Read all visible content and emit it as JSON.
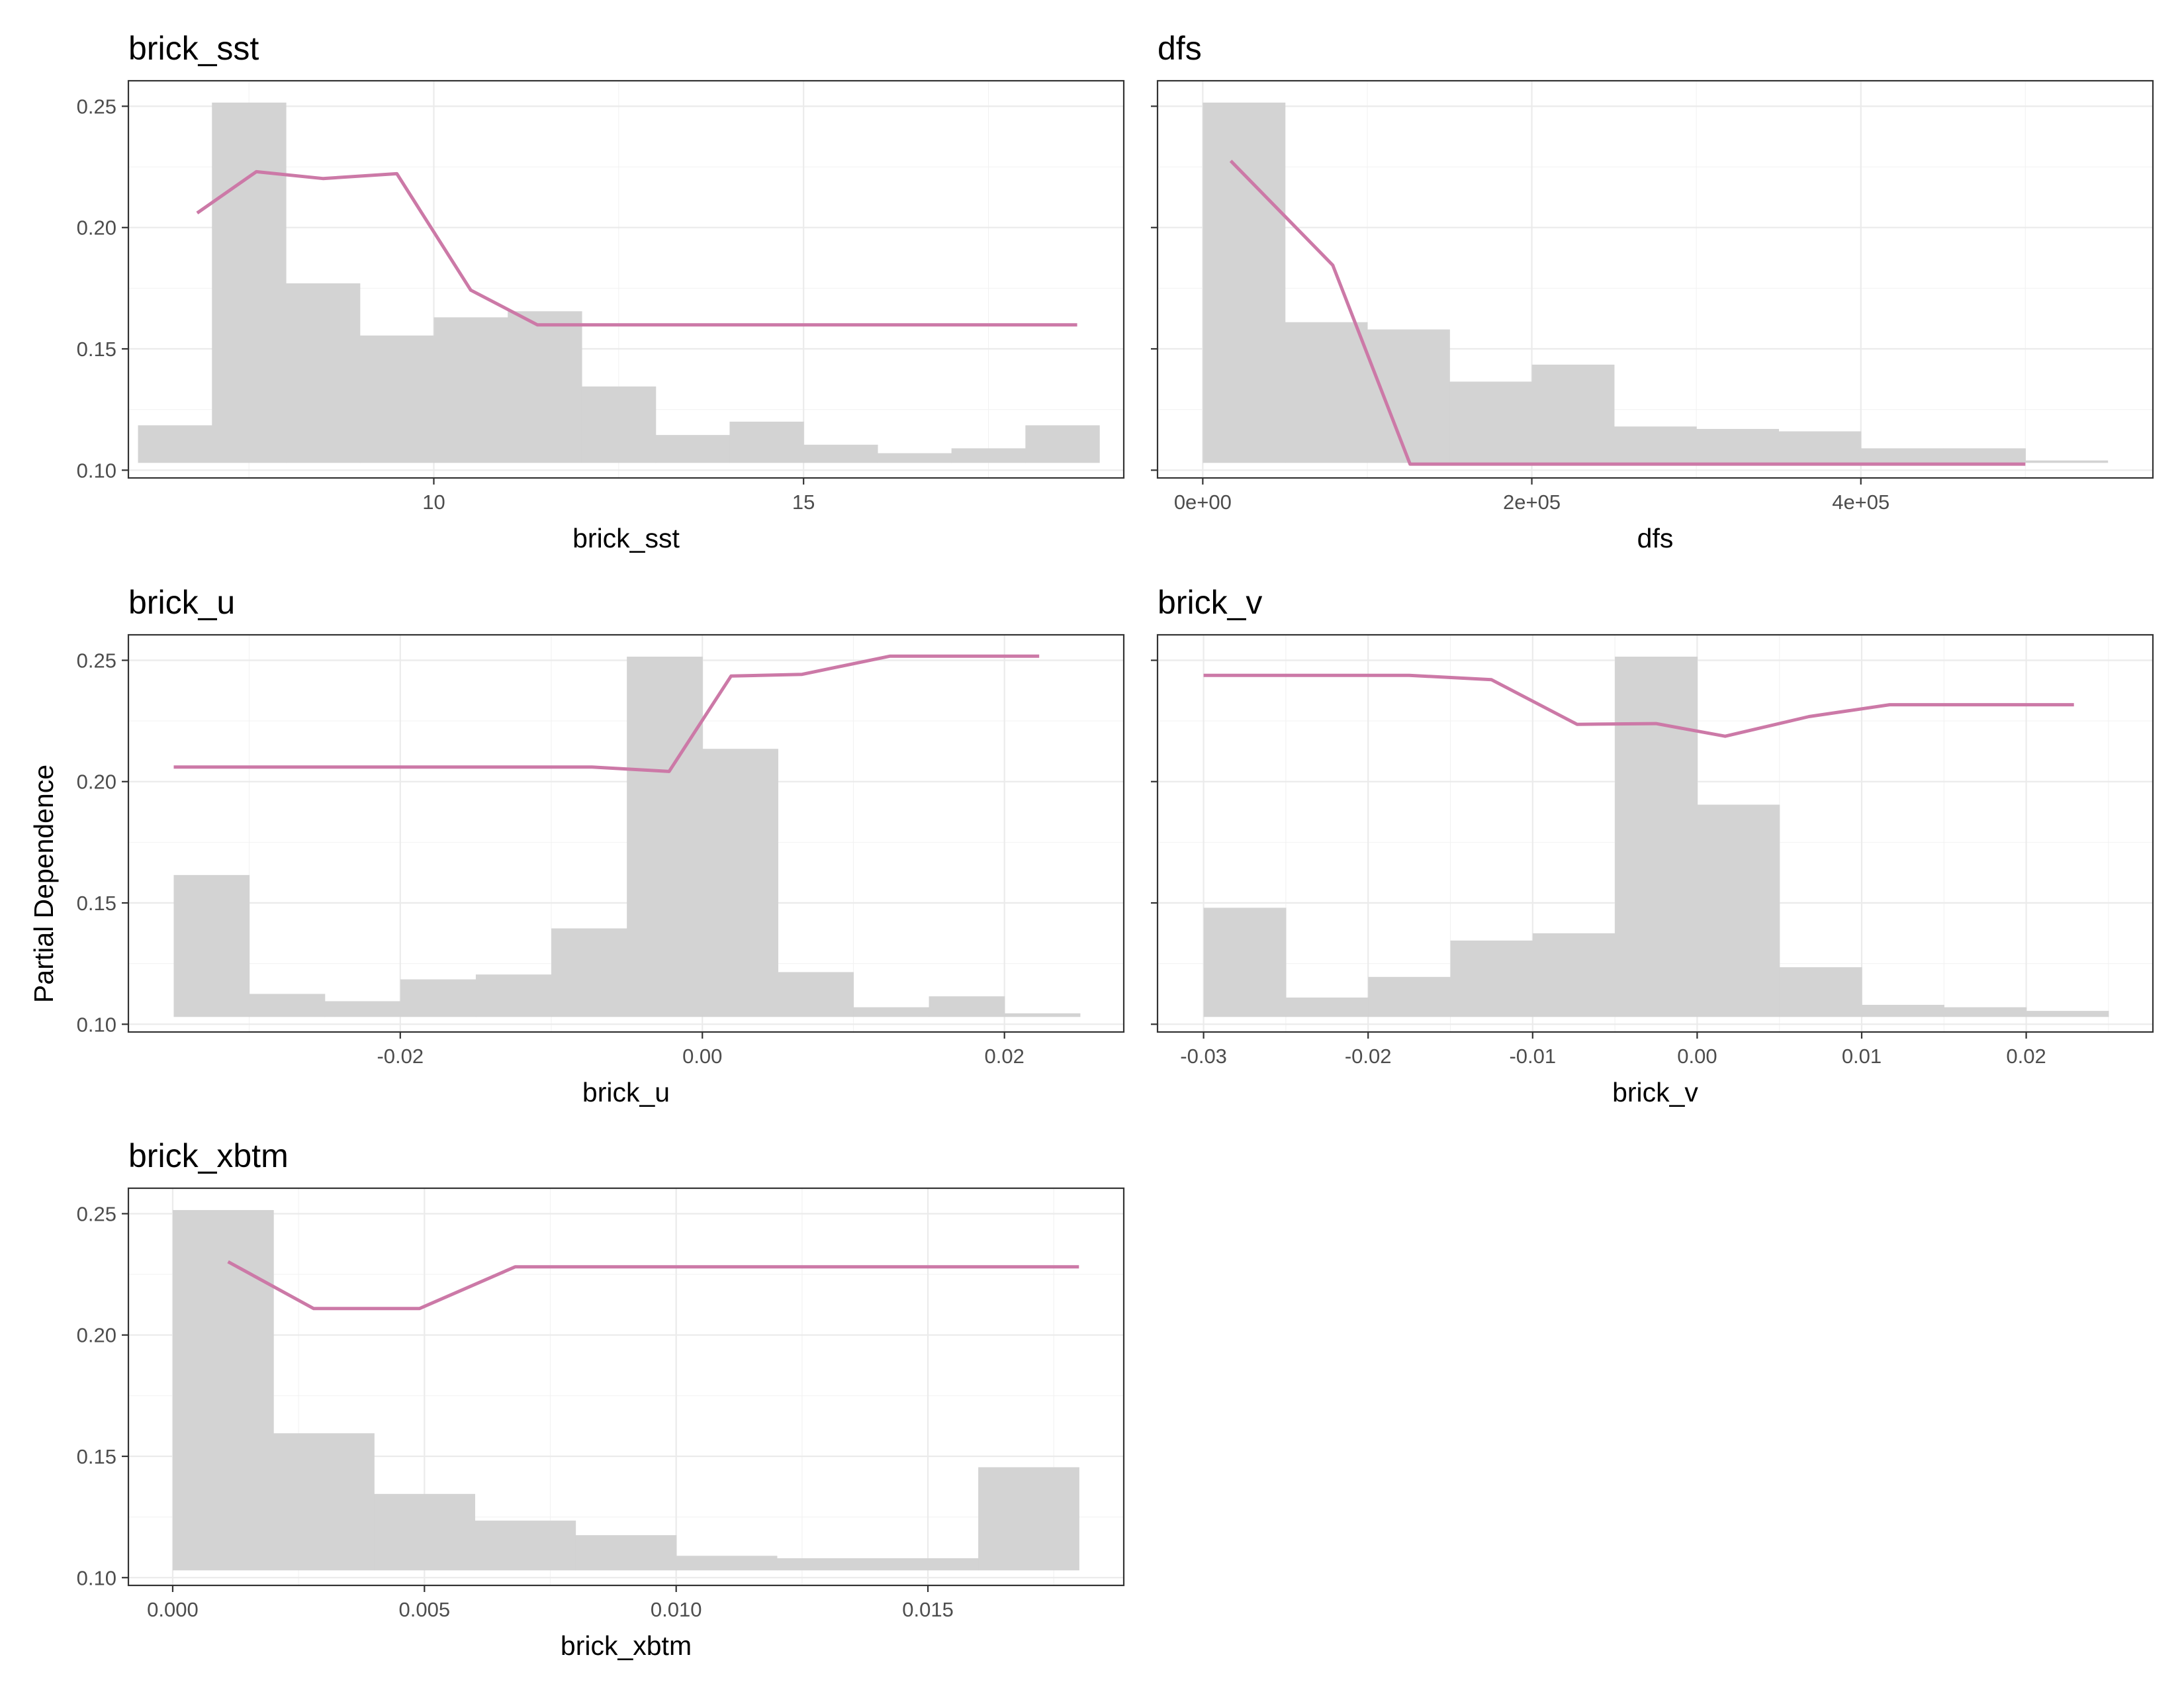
{
  "figure": {
    "ylabel": "Partial Dependence"
  },
  "colors": {
    "line": "#cc79a7",
    "histogram": "#d3d3d3",
    "panel_border": "#333333",
    "grid": "#ebebeb"
  },
  "chart_data": [
    {
      "type": "line",
      "title": "brick_sst",
      "xlabel": "brick_sst",
      "ylabel": "Partial Dependence",
      "xlim": [
        5.87,
        19.33
      ],
      "ylim": [
        0.0968,
        0.2605
      ],
      "x_ticks": [
        10,
        15
      ],
      "x_tick_labels": [
        "10",
        "15"
      ],
      "y_ticks": [
        0.1,
        0.15,
        0.2,
        0.25
      ],
      "y_tick_labels": [
        "0.10",
        "0.15",
        "0.20",
        "0.25"
      ],
      "grid": true,
      "line": {
        "x": [
          6.8,
          7.6,
          8.5,
          9.5,
          10.5,
          11.4,
          12.5,
          14.0,
          15.5,
          17.0,
          18.7
        ],
        "y": [
          0.206,
          0.223,
          0.2202,
          0.2222,
          0.1742,
          0.1599,
          0.1599,
          0.1599,
          0.1599,
          0.1599,
          0.1599
        ]
      },
      "histogram": {
        "bin_edges": [
          6.0,
          7.0,
          8.0,
          9.0,
          10.0,
          11.0,
          12.0,
          13.0,
          14.0,
          15.0,
          16.0,
          17.0,
          18.0,
          19.0
        ],
        "heights": [
          0.1185,
          0.2515,
          0.177,
          0.1555,
          0.163,
          0.1655,
          0.1345,
          0.1145,
          0.12,
          0.1105,
          0.107,
          0.109,
          0.1185
        ],
        "base": 0.103
      }
    },
    {
      "type": "line",
      "title": "dfs",
      "xlabel": "dfs",
      "ylabel": "",
      "xlim": [
        -27500,
        577500
      ],
      "ylim": [
        0.0968,
        0.2605
      ],
      "x_ticks": [
        0,
        200000,
        400000
      ],
      "x_tick_labels": [
        "0e+00",
        "2e+05",
        "4e+05"
      ],
      "y_ticks": [
        0.1,
        0.15,
        0.2,
        0.25
      ],
      "y_tick_labels": [],
      "grid": true,
      "line": {
        "x": [
          17000,
          79000,
          126000,
          200000,
          300000,
          400000,
          500000
        ],
        "y": [
          0.2275,
          0.1845,
          0.1025,
          0.1025,
          0.1025,
          0.1025,
          0.1025
        ]
      },
      "histogram": {
        "bin_edges": [
          0,
          50000,
          100000,
          150000,
          200000,
          250000,
          300000,
          350000,
          400000,
          450000,
          500000,
          550000
        ],
        "heights": [
          0.2515,
          0.161,
          0.158,
          0.1365,
          0.1435,
          0.118,
          0.117,
          0.116,
          0.109,
          0.109,
          0.104
        ],
        "base": 0.103
      }
    },
    {
      "type": "line",
      "title": "brick_u",
      "xlabel": "brick_u",
      "ylabel": "Partial Dependence",
      "xlim": [
        -0.038,
        0.0279
      ],
      "ylim": [
        0.0968,
        0.2605
      ],
      "x_ticks": [
        -0.02,
        0.0,
        0.02
      ],
      "x_tick_labels": [
        "-0.02",
        "0.00",
        "0.02"
      ],
      "y_ticks": [
        0.1,
        0.15,
        0.2,
        0.25
      ],
      "y_tick_labels": [
        "0.10",
        "0.15",
        "0.20",
        "0.25"
      ],
      "grid": true,
      "line": {
        "x": [
          -0.035,
          -0.025,
          -0.015,
          -0.0073,
          -0.0022,
          0.0019,
          0.0066,
          0.0124,
          0.0223
        ],
        "y": [
          0.206,
          0.206,
          0.206,
          0.206,
          0.2042,
          0.2435,
          0.2442,
          0.2517,
          0.2517
        ]
      },
      "histogram": {
        "bin_edges": [
          -0.035,
          -0.03,
          -0.025,
          -0.02,
          -0.015,
          -0.01,
          -0.005,
          0.0,
          0.005,
          0.01,
          0.015,
          0.02,
          0.025
        ],
        "heights": [
          0.1615,
          0.1125,
          0.1095,
          0.1185,
          0.1205,
          0.1395,
          0.2515,
          0.2135,
          0.1215,
          0.107,
          0.1115,
          0.1045
        ],
        "base": 0.103
      }
    },
    {
      "type": "line",
      "title": "brick_v",
      "xlabel": "brick_v",
      "ylabel": "",
      "xlim": [
        -0.0328,
        0.0277
      ],
      "ylim": [
        0.0968,
        0.2605
      ],
      "x_ticks": [
        -0.03,
        -0.02,
        -0.01,
        0.0,
        0.01,
        0.02
      ],
      "x_tick_labels": [
        "-0.03",
        "-0.02",
        "-0.01",
        "0.00",
        "0.01",
        "0.02"
      ],
      "y_ticks": [
        0.1,
        0.15,
        0.2,
        0.25
      ],
      "y_tick_labels": [],
      "grid": true,
      "line": {
        "x": [
          -0.03,
          -0.0175,
          -0.0125,
          -0.0073,
          -0.0025,
          0.0017,
          0.0068,
          0.0117,
          0.0229
        ],
        "y": [
          0.2438,
          0.2438,
          0.242,
          0.2236,
          0.2239,
          0.2187,
          0.2268,
          0.2317,
          0.2317
        ]
      },
      "histogram": {
        "bin_edges": [
          -0.03,
          -0.025,
          -0.02,
          -0.015,
          -0.01,
          -0.005,
          0.0,
          0.005,
          0.01,
          0.015,
          0.02,
          0.025
        ],
        "heights": [
          0.148,
          0.111,
          0.1195,
          0.1345,
          0.1375,
          0.2515,
          0.1905,
          0.1235,
          0.108,
          0.107,
          0.1055
        ],
        "base": 0.103
      }
    },
    {
      "type": "line",
      "title": "brick_xbtm",
      "xlabel": "brick_xbtm",
      "ylabel": "",
      "xlim": [
        -0.00088,
        0.01889
      ],
      "ylim": [
        0.0968,
        0.2605
      ],
      "x_ticks": [
        0.0,
        0.005,
        0.01,
        0.015
      ],
      "x_tick_labels": [
        "0.000",
        "0.005",
        "0.010",
        "0.015"
      ],
      "y_ticks": [
        0.1,
        0.15,
        0.2,
        0.25
      ],
      "y_tick_labels": [
        "0.10",
        "0.15",
        "0.20",
        "0.25"
      ],
      "grid": true,
      "line": {
        "x": [
          0.0011,
          0.0028,
          0.0049,
          0.0068,
          0.01,
          0.014,
          0.018
        ],
        "y": [
          0.2302,
          0.2109,
          0.2109,
          0.2281,
          0.2281,
          0.2281,
          0.2281
        ]
      },
      "histogram": {
        "bin_edges": [
          0.0,
          0.002,
          0.004,
          0.006,
          0.008,
          0.01,
          0.012,
          0.014,
          0.016,
          0.018
        ],
        "heights": [
          0.2515,
          0.1595,
          0.1345,
          0.1235,
          0.1175,
          0.109,
          0.108,
          0.108,
          0.1455
        ],
        "base": 0.103
      }
    }
  ]
}
